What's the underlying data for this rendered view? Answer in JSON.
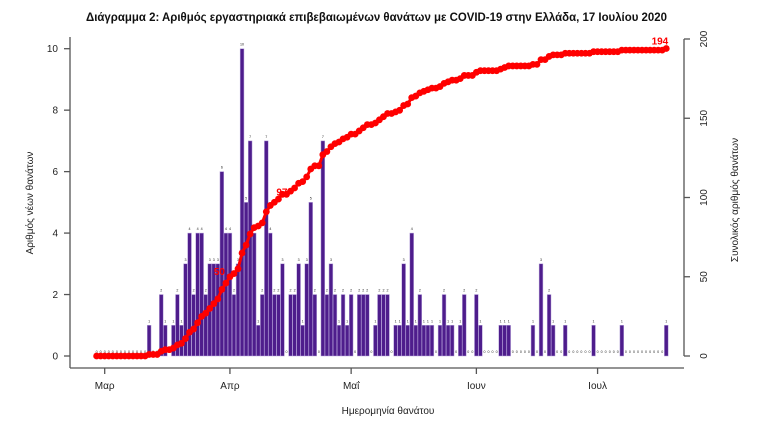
{
  "chart_data": {
    "type": "bar+line",
    "title": "Διάγραμμα 2: Αριθμός εργαστηριακά επιβεβαιωμένων θανάτων με COVID-19 στην Ελλάδα, 17 Ιουλίου 2020",
    "xlabel": "Ημερομηνία θανάτου",
    "ylabel_left": "Αριθμός νέων θανάτων",
    "ylabel_right": "Συνολικός αριθμός θανάτων",
    "x_start_date": "2020-02-28",
    "x_end_date": "2020-07-17",
    "x_tick_labels": [
      {
        "label": "Μαρ",
        "date": "2020-03-01"
      },
      {
        "label": "Απρ",
        "date": "2020-04-01"
      },
      {
        "label": "Μαΐ",
        "date": "2020-05-01"
      },
      {
        "label": "Ιουν",
        "date": "2020-06-01"
      },
      {
        "label": "Ιουλ",
        "date": "2020-07-01"
      }
    ],
    "ylim_left": [
      0,
      10
    ],
    "yticks_left": [
      "0",
      "2",
      "4",
      "6",
      "8",
      "10"
    ],
    "ylim_right": [
      0,
      200
    ],
    "yticks_right": [
      "0",
      "50",
      "100",
      "150",
      "200"
    ],
    "grid": false,
    "legend": "none",
    "series": [
      {
        "type": "bar",
        "axis": "left",
        "color": "#4e1d8c",
        "values": [
          0,
          0,
          0,
          0,
          0,
          0,
          0,
          0,
          0,
          0,
          0,
          0,
          0,
          1,
          0,
          0,
          2,
          1,
          0,
          1,
          2,
          1,
          3,
          4,
          2,
          4,
          4,
          2,
          3,
          3,
          3,
          6,
          4,
          4,
          2,
          3,
          10,
          5,
          7,
          4,
          1,
          2,
          7,
          4,
          2,
          2,
          3,
          0,
          2,
          2,
          3,
          1,
          3,
          5,
          2,
          0,
          7,
          2,
          3,
          2,
          1,
          2,
          1,
          2,
          0,
          2,
          2,
          2,
          0,
          1,
          2,
          2,
          2,
          0,
          1,
          1,
          3,
          1,
          4,
          1,
          2,
          1,
          1,
          1,
          0,
          1,
          2,
          1,
          1,
          0,
          1,
          2,
          0,
          0,
          2,
          1,
          0,
          0,
          0,
          0,
          1,
          1,
          1,
          0,
          0,
          0,
          0,
          0,
          1,
          0,
          3,
          0,
          2,
          1,
          0,
          0,
          1,
          0,
          0,
          0,
          0,
          0,
          0,
          1,
          0,
          0,
          0,
          0,
          0,
          0,
          1,
          0,
          0,
          0,
          0,
          0,
          0,
          0,
          0,
          0,
          0,
          1
        ]
      },
      {
        "type": "line",
        "axis": "right",
        "cumulative_of_bars": true,
        "color": "#ff0000",
        "point_labels": [
          "50",
          "97",
          "194"
        ]
      }
    ]
  }
}
